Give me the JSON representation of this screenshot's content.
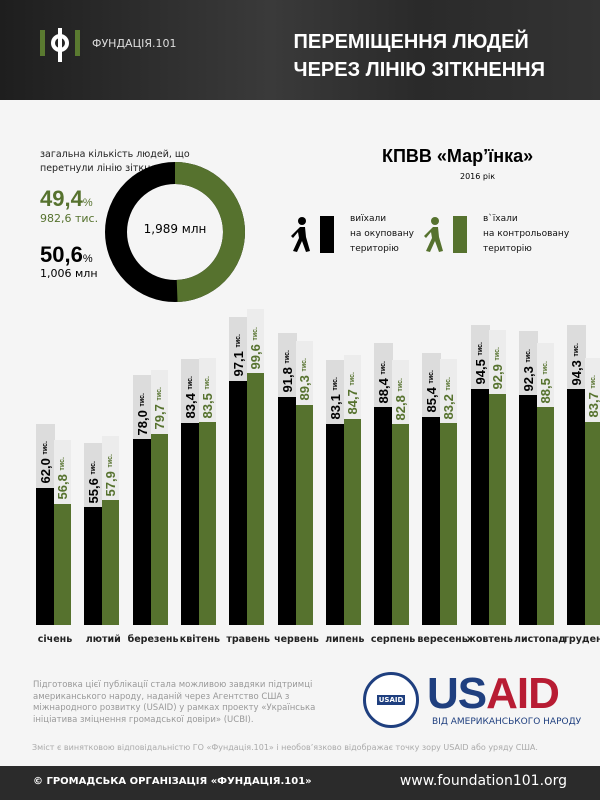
{
  "header": {
    "logo_text": "ФУНДАЦІЯ.101",
    "title_line1": "ПЕРЕМІЩЕННЯ ЛЮДЕЙ",
    "title_line2": "ЧЕРЕЗ ЛІНІЮ ЗІТКНЕННЯ"
  },
  "summary": {
    "label": "загальна кількість людей, що перетнули лінію зіткнення",
    "total": "1,989 млн",
    "entered_pct": "49,4",
    "entered_count": "982,6 тис.",
    "left_pct": "50,6",
    "left_count": "1,006 млн",
    "pct_sign": "%"
  },
  "checkpoint": {
    "name": "КПВВ «Мар’їнка»",
    "year": "2016 рік"
  },
  "legend": {
    "left": [
      "виїхали",
      "на окуповану",
      "територію"
    ],
    "entered": [
      "в`їхали",
      "на контрольовану",
      "територію"
    ]
  },
  "colors": {
    "left": "#000000",
    "entered": "#56722e",
    "accent": "#56722e"
  },
  "chart_data": {
    "type": "bar",
    "title": "КПВВ «Мар’їнка» 2016 рік",
    "unit": "тис.",
    "ylim": [
      17,
      100
    ],
    "categories": [
      "січень",
      "лютий",
      "березень",
      "квітень",
      "травень",
      "червень",
      "липень",
      "серпень",
      "вересень",
      "жовтень",
      "листопад",
      "грудень"
    ],
    "series": [
      {
        "name": "виїхали на окуповану територію",
        "labels": [
          "62,0",
          "55,6",
          "78,0",
          "83,4",
          "97,1",
          "91,8",
          "83,1",
          "88,4",
          "85,4",
          "94,5",
          "92,3",
          "94,3"
        ],
        "values": [
          62.0,
          55.6,
          78.0,
          83.4,
          97.1,
          91.8,
          83.1,
          88.4,
          85.4,
          94.5,
          92.3,
          94.3
        ]
      },
      {
        "name": "в`їхали на контрольовану територію",
        "labels": [
          "56,8",
          "57,9",
          "79,7",
          "83,5",
          "99,6",
          "89,3",
          "84,7",
          "82,8",
          "83,2",
          "92,9",
          "88,5",
          "83,7"
        ],
        "values": [
          56.8,
          57.9,
          79.7,
          83.5,
          99.6,
          89.3,
          84.7,
          82.8,
          83.2,
          92.9,
          88.5,
          83.7
        ]
      }
    ],
    "summary_pie": [
      {
        "name": "в`їхали",
        "value": 49.4
      },
      {
        "name": "виїхали",
        "value": 50.6
      }
    ]
  },
  "footer_note": {
    "text": "Підготовка цієї публікації стала можливою завдяки підтримці американського народу, наданій через Агентство США з міжнародного розвитку (USAID) у рамках проекту «Українська ініціатива зміцнення громадської довіри» (UCBI).",
    "disclaimer": "Зміст є винятковою відповідальністю ГО «Фундація.101» і необов’язково відображає точку зору USAID або уряду США.",
    "usaid_us": "US",
    "usaid_aid": "AID",
    "usaid_sub": "ВІД АМЕРИКАНСЬКОГО НАРОДУ",
    "seal_text": "USAID"
  },
  "footer": {
    "copyright": "© ГРОМАДСЬКА ОРГАНІЗАЦІЯ «ФУНДАЦІЯ.101»",
    "website": "www.foundation101.org"
  }
}
